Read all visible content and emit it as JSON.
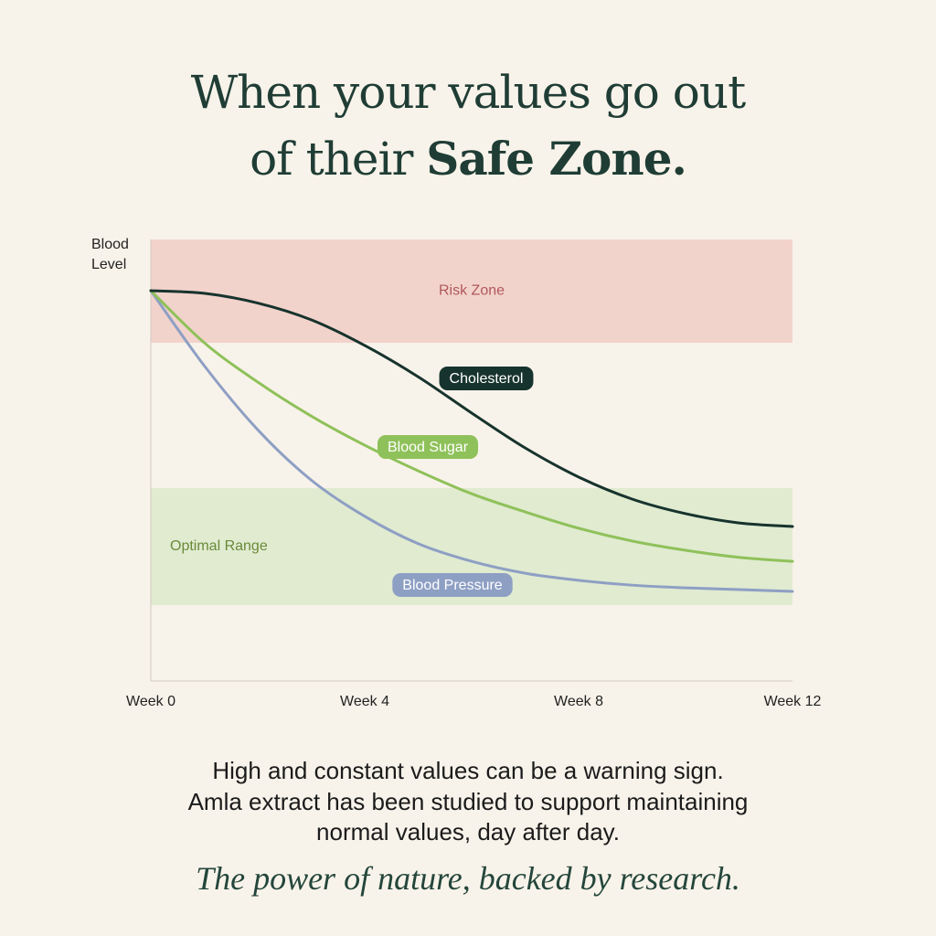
{
  "header": {
    "title_line1": "When your values go out",
    "title_line2_plain": "of their",
    "title_line2_bold": "Safe Zone."
  },
  "chart_data": {
    "type": "line",
    "y_label": "Blood Level",
    "x": [
      0,
      1,
      2,
      3,
      4,
      5,
      6,
      7,
      8,
      9,
      10,
      11,
      12
    ],
    "xlim": [
      0,
      12
    ],
    "xticks": [
      {
        "value": 0,
        "label": "Week 0"
      },
      {
        "value": 4,
        "label": "Week 4"
      },
      {
        "value": 8,
        "label": "Week 8"
      },
      {
        "value": 12,
        "label": "Week 12"
      }
    ],
    "ylim": [
      0,
      100
    ],
    "zones": [
      {
        "label": "Risk Zone",
        "range": [
          76.6,
          100
        ],
        "color": "#f2d3cc",
        "text_color": "#b0585a"
      },
      {
        "label": "Optimal Range",
        "range": [
          17.2,
          43.7
        ],
        "color": "#e0ebd0",
        "text_color": "#6a8a3a"
      }
    ],
    "series": [
      {
        "name": "Cholesterol",
        "color": "#17332d",
        "values": [
          88.4,
          87.8,
          85.6,
          81.8,
          76.0,
          68.9,
          60.7,
          52.8,
          46.2,
          41.2,
          37.9,
          35.8,
          35.0
        ]
      },
      {
        "name": "Blood Sugar",
        "color": "#8fc15a",
        "values": [
          88.4,
          76.6,
          67.7,
          60.0,
          53.4,
          47.6,
          42.4,
          38.3,
          34.6,
          31.7,
          29.6,
          28.0,
          27.1
        ]
      },
      {
        "name": "Blood Pressure",
        "color": "#8e9fc4",
        "values": [
          88.4,
          71.4,
          56.9,
          45.5,
          37.3,
          31.1,
          27.1,
          24.4,
          22.8,
          21.7,
          21.1,
          20.7,
          20.3
        ]
      }
    ]
  },
  "footer": {
    "body_lines": [
      "High and constant values can be a warning sign.",
      "Amla extract has been studied to support maintaining",
      "normal values, day after day."
    ],
    "tagline": "The power of nature, backed by research."
  }
}
